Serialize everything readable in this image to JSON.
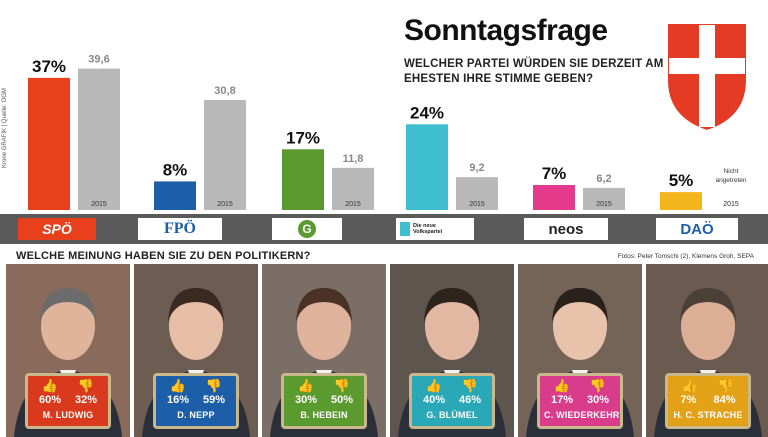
{
  "header": {
    "title": "Sonntagsfrage",
    "question": "WELCHER PARTEI WÜRDEN SIE DERZEIT AM EHESTEN IHRE STIMME GEBEN?",
    "credit_vertical": "Krone GRAFIK | Quelle: OGM"
  },
  "chart_data": {
    "type": "bar",
    "categories": [
      "SPÖ",
      "FPÖ",
      "Grüne",
      "Die neue Volkspartei",
      "NEOS",
      "DAÖ"
    ],
    "series": [
      {
        "name": "",
        "values": [
          37,
          8,
          17,
          24,
          7,
          5
        ]
      },
      {
        "name": "2015",
        "values": [
          39.6,
          30.8,
          11.8,
          9.2,
          6.2,
          null
        ]
      }
    ],
    "value_labels_current": [
      "37%",
      "8%",
      "17%",
      "24%",
      "7%",
      "5%"
    ],
    "value_labels_2015": [
      "39,6",
      "30,8",
      "11,8",
      "9,2",
      "6,2",
      ""
    ],
    "year_label": "2015",
    "not_running_label": "Nicht angetreten",
    "ylim": [
      0,
      42
    ],
    "colors": [
      "#e8401c",
      "#1d5ea8",
      "#5a9a2f",
      "#3fbfd0",
      "#e53a8c",
      "#f3b51b"
    ],
    "compare_color": "#b8b8b8"
  },
  "logos": {
    "spo": "SPÖ",
    "fpo": "FPÖ",
    "gruene": "G",
    "ovp": "Die neue Volkspartei",
    "neos": "neos",
    "dao": "DAÖ"
  },
  "politicians_section": {
    "question": "WELCHE MEINUNG HABEN SIE ZU DEN POLITIKERN?",
    "photo_credit": "Fotos: Peter Tomschi (2), Klemens Groh, SEPA",
    "people": [
      {
        "name": "M. LUDWIG",
        "positive": "60%",
        "negative": "32%",
        "color": "#d9391c"
      },
      {
        "name": "D. NEPP",
        "positive": "16%",
        "negative": "59%",
        "color": "#1d5ea8"
      },
      {
        "name": "B. HEBEIN",
        "positive": "30%",
        "negative": "50%",
        "color": "#5a9a2f"
      },
      {
        "name": "G. BLÜMEL",
        "positive": "40%",
        "negative": "46%",
        "color": "#2aa8b8"
      },
      {
        "name": "C. WIEDERKEHR",
        "positive": "17%",
        "negative": "30%",
        "color": "#d83c8a"
      },
      {
        "name": "H. C. STRACHE",
        "positive": "7%",
        "negative": "84%",
        "color": "#e3a117"
      }
    ]
  },
  "icons": {
    "positive": "thumbs-up-icon",
    "negative": "thumbs-down-icon"
  }
}
